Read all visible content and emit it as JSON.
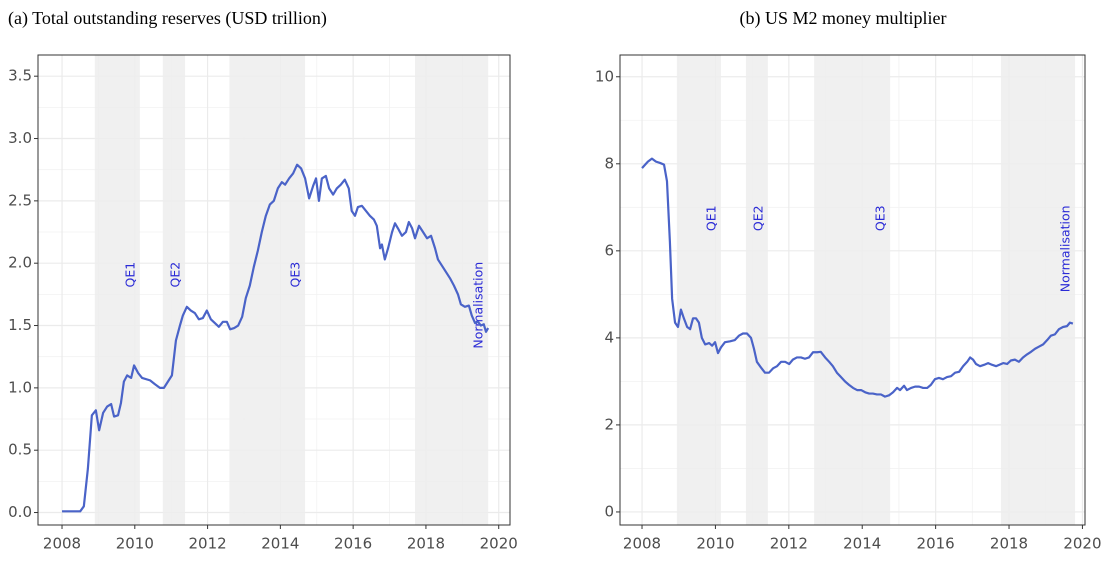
{
  "chart_data": [
    {
      "type": "line",
      "title": "(a) Total outstanding reserves (USD trillion)",
      "x": [
        2008.0,
        2008.5,
        2008.6,
        2008.71,
        2008.82,
        2008.93,
        2009.02,
        2009.13,
        2009.24,
        2009.35,
        2009.43,
        2009.54,
        2009.62,
        2009.7,
        2009.79,
        2009.9,
        2009.98,
        2010.09,
        2010.2,
        2010.42,
        2010.55,
        2010.69,
        2010.8,
        2010.91,
        2011.02,
        2011.13,
        2011.24,
        2011.32,
        2011.43,
        2011.54,
        2011.65,
        2011.76,
        2011.87,
        2011.98,
        2012.09,
        2012.2,
        2012.31,
        2012.42,
        2012.53,
        2012.62,
        2012.73,
        2012.84,
        2012.95,
        2013.05,
        2013.16,
        2013.27,
        2013.38,
        2013.49,
        2013.6,
        2013.71,
        2013.82,
        2013.93,
        2014.04,
        2014.13,
        2014.24,
        2014.35,
        2014.46,
        2014.57,
        2014.68,
        2014.79,
        2014.9,
        2014.98,
        2015.06,
        2015.14,
        2015.25,
        2015.34,
        2015.45,
        2015.55,
        2015.66,
        2015.77,
        2015.88,
        2015.96,
        2016.05,
        2016.13,
        2016.24,
        2016.35,
        2016.46,
        2016.57,
        2016.65,
        2016.74,
        2016.79,
        2016.87,
        2016.96,
        2017.07,
        2017.15,
        2017.23,
        2017.34,
        2017.45,
        2017.53,
        2017.62,
        2017.7,
        2017.81,
        2017.92,
        2018.03,
        2018.14,
        2018.25,
        2018.33,
        2018.44,
        2018.55,
        2018.66,
        2018.77,
        2018.88,
        2018.96,
        2019.07,
        2019.18,
        2019.26,
        2019.35,
        2019.43,
        2019.51,
        2019.59,
        2019.65,
        2019.71
      ],
      "series": [
        {
          "color": "#4a63c8",
          "values": [
            0.01,
            0.01,
            0.05,
            0.35,
            0.78,
            0.82,
            0.66,
            0.8,
            0.85,
            0.87,
            0.77,
            0.78,
            0.88,
            1.05,
            1.1,
            1.08,
            1.18,
            1.12,
            1.08,
            1.06,
            1.03,
            1.0,
            1.0,
            1.05,
            1.1,
            1.38,
            1.5,
            1.58,
            1.65,
            1.62,
            1.6,
            1.55,
            1.56,
            1.62,
            1.55,
            1.52,
            1.49,
            1.53,
            1.53,
            1.47,
            1.48,
            1.5,
            1.57,
            1.72,
            1.82,
            1.97,
            2.1,
            2.25,
            2.38,
            2.47,
            2.5,
            2.6,
            2.65,
            2.63,
            2.68,
            2.72,
            2.79,
            2.76,
            2.68,
            2.52,
            2.62,
            2.68,
            2.5,
            2.68,
            2.7,
            2.6,
            2.55,
            2.6,
            2.63,
            2.67,
            2.6,
            2.42,
            2.38,
            2.45,
            2.46,
            2.42,
            2.38,
            2.35,
            2.3,
            2.12,
            2.15,
            2.03,
            2.12,
            2.25,
            2.32,
            2.28,
            2.22,
            2.25,
            2.33,
            2.28,
            2.2,
            2.3,
            2.25,
            2.2,
            2.22,
            2.12,
            2.03,
            1.98,
            1.93,
            1.88,
            1.82,
            1.75,
            1.67,
            1.65,
            1.66,
            1.58,
            1.52,
            1.53,
            1.5,
            1.51,
            1.45,
            1.48
          ]
        }
      ],
      "xlim": [
        2007.34,
        2020.31
      ],
      "ylim": [
        -0.1,
        3.67
      ],
      "xticks": [
        2008,
        2010,
        2012,
        2014,
        2016,
        2018,
        2020
      ],
      "yticks": [
        {
          "value": 0,
          "label": "0.0"
        },
        0.5,
        {
          "value": 1,
          "label": "1.0"
        },
        1.5,
        {
          "value": 2,
          "label": "2.0"
        },
        2.5,
        {
          "value": 3,
          "label": "3.0"
        },
        3.5
      ],
      "grid": true,
      "region_color": "#ededed",
      "region_label_color": "#2b2bd6",
      "regions": [
        {
          "label": "QE1",
          "start": 2008.9,
          "end": 2010.14
        },
        {
          "label": "QE2",
          "start": 2010.77,
          "end": 2011.38
        },
        {
          "label": "QE3",
          "start": 2012.6,
          "end": 2014.68
        },
        {
          "label": "Normalisation",
          "start": 2017.7,
          "end": 2019.71
        }
      ]
    },
    {
      "type": "line",
      "title": "(b) US M2 money multiplier",
      "x": [
        2008.0,
        2008.16,
        2008.27,
        2008.38,
        2008.49,
        2008.6,
        2008.68,
        2008.76,
        2008.82,
        2008.9,
        2008.98,
        2009.06,
        2009.14,
        2009.23,
        2009.31,
        2009.39,
        2009.47,
        2009.55,
        2009.63,
        2009.72,
        2009.83,
        2009.91,
        2009.99,
        2010.07,
        2010.15,
        2010.26,
        2010.4,
        2010.53,
        2010.64,
        2010.75,
        2010.86,
        2010.97,
        2011.05,
        2011.13,
        2011.24,
        2011.35,
        2011.46,
        2011.57,
        2011.68,
        2011.79,
        2011.9,
        2012.01,
        2012.11,
        2012.22,
        2012.33,
        2012.44,
        2012.55,
        2012.66,
        2012.77,
        2012.87,
        2012.99,
        2013.1,
        2013.2,
        2013.31,
        2013.42,
        2013.53,
        2013.64,
        2013.75,
        2013.86,
        2013.97,
        2014.08,
        2014.19,
        2014.29,
        2014.4,
        2014.51,
        2014.62,
        2014.73,
        2014.84,
        2014.95,
        2015.03,
        2015.14,
        2015.22,
        2015.33,
        2015.44,
        2015.55,
        2015.66,
        2015.77,
        2015.87,
        2015.98,
        2016.09,
        2016.2,
        2016.31,
        2016.42,
        2016.53,
        2016.64,
        2016.75,
        2016.86,
        2016.94,
        2017.02,
        2017.1,
        2017.21,
        2017.32,
        2017.43,
        2017.54,
        2017.65,
        2017.73,
        2017.84,
        2017.95,
        2018.05,
        2018.16,
        2018.27,
        2018.38,
        2018.49,
        2018.6,
        2018.71,
        2018.82,
        2018.93,
        2019.04,
        2019.14,
        2019.25,
        2019.36,
        2019.47,
        2019.58,
        2019.66,
        2019.74
      ],
      "series": [
        {
          "color": "#4a63c8",
          "values": [
            7.9,
            8.05,
            8.12,
            8.05,
            8.02,
            7.98,
            7.6,
            6.2,
            4.9,
            4.35,
            4.25,
            4.65,
            4.45,
            4.25,
            4.2,
            4.45,
            4.45,
            4.35,
            4.0,
            3.85,
            3.88,
            3.82,
            3.9,
            3.65,
            3.78,
            3.9,
            3.92,
            3.95,
            4.05,
            4.1,
            4.1,
            4.0,
            3.75,
            3.45,
            3.32,
            3.2,
            3.2,
            3.3,
            3.35,
            3.45,
            3.45,
            3.4,
            3.5,
            3.55,
            3.55,
            3.52,
            3.55,
            3.67,
            3.67,
            3.68,
            3.55,
            3.45,
            3.35,
            3.2,
            3.1,
            3.0,
            2.92,
            2.85,
            2.8,
            2.8,
            2.75,
            2.72,
            2.72,
            2.7,
            2.7,
            2.65,
            2.68,
            2.75,
            2.85,
            2.8,
            2.9,
            2.8,
            2.85,
            2.88,
            2.88,
            2.85,
            2.85,
            2.92,
            3.05,
            3.08,
            3.05,
            3.1,
            3.12,
            3.2,
            3.22,
            3.35,
            3.45,
            3.55,
            3.5,
            3.4,
            3.35,
            3.38,
            3.42,
            3.38,
            3.35,
            3.38,
            3.42,
            3.4,
            3.48,
            3.5,
            3.45,
            3.55,
            3.62,
            3.68,
            3.75,
            3.8,
            3.85,
            3.95,
            4.05,
            4.08,
            4.2,
            4.25,
            4.27,
            4.35,
            4.33
          ]
        }
      ],
      "xlim": [
        2007.4,
        2020.07
      ],
      "ylim": [
        -0.3,
        10.5
      ],
      "xticks": [
        2008,
        2010,
        2012,
        2014,
        2016,
        2018,
        2020
      ],
      "yticks": [
        0,
        2,
        4,
        6,
        8,
        10
      ],
      "grid": true,
      "region_color": "#ededed",
      "region_label_color": "#2b2bd6",
      "regions": [
        {
          "label": "QE1",
          "start": 2008.95,
          "end": 2010.15
        },
        {
          "label": "QE2",
          "start": 2010.83,
          "end": 2011.43
        },
        {
          "label": "QE3",
          "start": 2012.69,
          "end": 2014.76
        },
        {
          "label": "Normalisation",
          "start": 2017.78,
          "end": 2019.8
        }
      ]
    }
  ]
}
